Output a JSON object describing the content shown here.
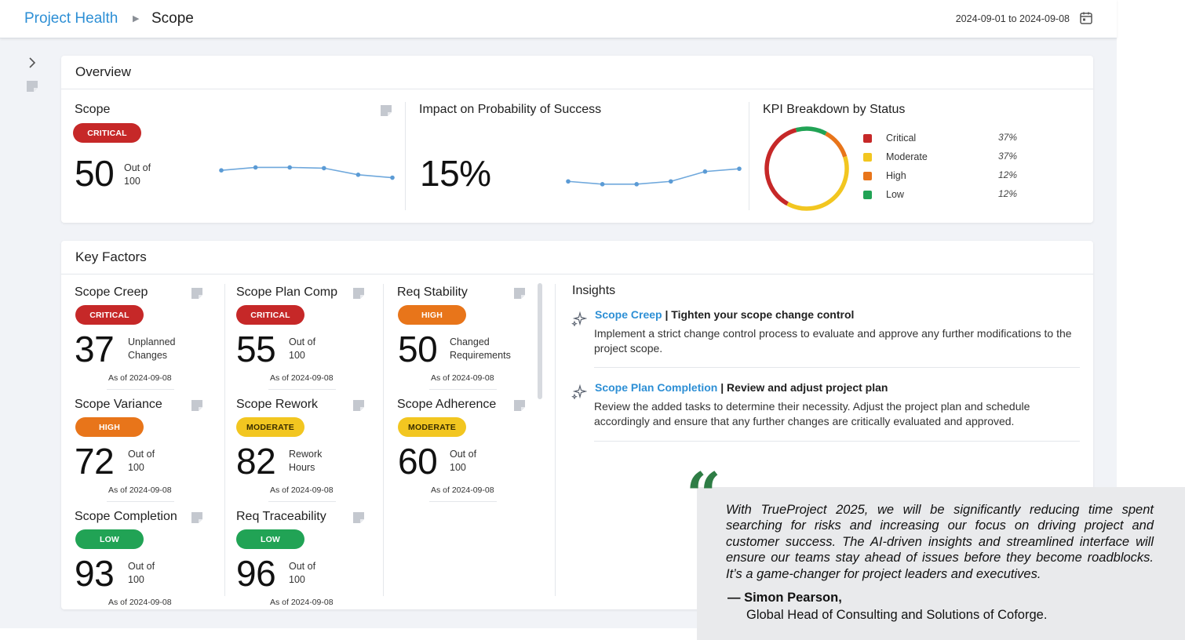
{
  "breadcrumb": {
    "root": "Project Health",
    "separator": "▶",
    "current": "Scope"
  },
  "date_range": "2024-09-01 to 2024-09-08",
  "overview": {
    "title": "Overview",
    "scope": {
      "label": "Scope",
      "status": "CRITICAL",
      "value": "50",
      "sub1": "Out of",
      "sub2": "100",
      "trend": [
        50,
        52,
        52,
        51.5,
        47,
        45
      ]
    },
    "impact": {
      "label": "Impact on Probability of Success",
      "value": "15%",
      "trend": [
        12,
        10,
        10,
        12,
        19,
        21
      ]
    },
    "kpi": {
      "label": "KPI Breakdown by Status",
      "items": [
        {
          "name": "Critical",
          "pct": "37%",
          "color": "#c62828"
        },
        {
          "name": "Moderate",
          "pct": "37%",
          "color": "#f2c620"
        },
        {
          "name": "High",
          "pct": "12%",
          "color": "#e8751a"
        },
        {
          "name": "Low",
          "pct": "12%",
          "color": "#21a355"
        }
      ]
    }
  },
  "key_factors": {
    "title": "Key Factors",
    "tiles": [
      {
        "label": "Scope Creep",
        "status": "CRITICAL",
        "value": "37",
        "sub1": "Unplanned",
        "sub2": "Changes",
        "asof": "As of 2024-09-08"
      },
      {
        "label": "Scope Plan Comp",
        "status": "CRITICAL",
        "value": "55",
        "sub1": "Out of",
        "sub2": "100",
        "asof": "As of 2024-09-08"
      },
      {
        "label": "Req Stability",
        "status": "HIGH",
        "value": "50",
        "sub1": "Changed",
        "sub2": "Requirements",
        "asof": "As of 2024-09-08"
      },
      {
        "label": "Scope Variance",
        "status": "HIGH",
        "value": "72",
        "sub1": "Out of",
        "sub2": "100",
        "asof": "As of 2024-09-08"
      },
      {
        "label": "Scope Rework",
        "status": "MODERATE",
        "value": "82",
        "sub1": "Rework",
        "sub2": "Hours",
        "asof": "As of 2024-09-08"
      },
      {
        "label": "Scope Adherence",
        "status": "MODERATE",
        "value": "60",
        "sub1": "Out of",
        "sub2": "100",
        "asof": "As of 2024-09-08"
      },
      {
        "label": "Scope Completion",
        "status": "LOW",
        "value": "93",
        "sub1": "Out of",
        "sub2": "100",
        "asof": "As of 2024-09-08"
      },
      {
        "label": "Req Traceability",
        "status": "LOW",
        "value": "96",
        "sub1": "Out of",
        "sub2": "100",
        "asof": "As of 2024-09-08"
      }
    ]
  },
  "insights": {
    "title": "Insights",
    "items": [
      {
        "link": "Scope Creep",
        "headline": " | Tighten your scope change control",
        "body": "Implement a strict change control process to evaluate and approve any further modifications to the project scope."
      },
      {
        "link": "Scope Plan Completion",
        "headline": " | Review and adjust project plan",
        "body": "Review the added tasks to determine their necessity. Adjust the project plan and schedule accordingly and ensure that any further changes are critically evaluated and approved."
      }
    ]
  },
  "quote": {
    "mark": "“",
    "text": "With TrueProject 2025, we will be significantly reducing time spent searching for risks and increasing our focus on driving project and customer success. The AI-driven insights and streamlined interface will ensure our teams stay ahead of issues before they become roadblocks. It’s a game-changer for project leaders and executives.",
    "author": "— Simon Pearson,",
    "role": "Global Head of Consulting and Solutions of Coforge."
  }
}
